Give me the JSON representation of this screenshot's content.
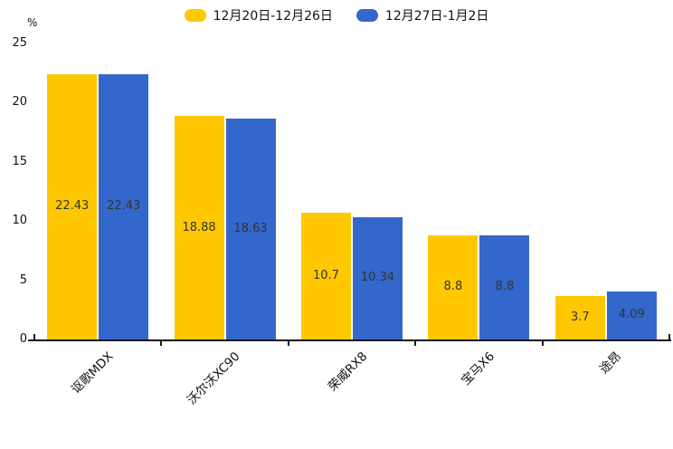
{
  "chart_data": {
    "type": "bar",
    "title": "",
    "categories": [
      "讴歌MDX",
      "沃尔沃XC90",
      "荣威RX8",
      "宝马X6",
      "途昂"
    ],
    "series": [
      {
        "name": "12月20日-12月26日",
        "color": "#FFC800",
        "values": [
          22.43,
          18.88,
          10.7,
          8.8,
          3.7
        ]
      },
      {
        "name": "12月27日-1月2日",
        "color": "#3467CC",
        "values": [
          22.43,
          18.63,
          10.34,
          8.8,
          4.09
        ]
      }
    ],
    "xlabel": "",
    "ylabel": "%",
    "ylim": [
      0,
      25
    ],
    "yticks": [
      0,
      5,
      10,
      15,
      20,
      25
    ],
    "grid": false,
    "legend_position": "top-center",
    "value_label_color": "#333333",
    "axis_color": "#1a1a1a"
  }
}
